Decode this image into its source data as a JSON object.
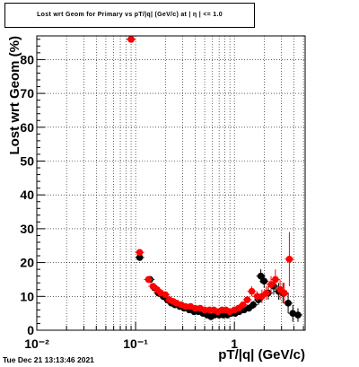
{
  "footer_timestamp": "Tue Dec 21 13:13:46 2021",
  "chart_data": {
    "type": "scatter",
    "title": "Lost wrt Geom for Primary vs pT/|q| (GeV/c) at | η | <= 1.0",
    "xlabel": "pT/|q| (GeV/c)",
    "ylabel": "Lost wrt Geom (%)",
    "xscale": "log",
    "xlim": [
      0.01,
      5.2
    ],
    "ylim": [
      0,
      87
    ],
    "grid": true,
    "x_tick_labels": [
      "10⁻²",
      "10⁻¹",
      "1"
    ],
    "y_ticks": [
      0,
      10,
      20,
      30,
      40,
      50,
      60,
      70,
      80
    ],
    "series": [
      {
        "color": "#000000",
        "points": [
          [
            0.09,
            86
          ],
          [
            0.11,
            21.5
          ],
          [
            0.14,
            15
          ],
          [
            0.155,
            12.5
          ],
          [
            0.17,
            11
          ],
          [
            0.19,
            10
          ],
          [
            0.21,
            9
          ],
          [
            0.23,
            8
          ],
          [
            0.25,
            7.5
          ],
          [
            0.28,
            7
          ],
          [
            0.31,
            6.5
          ],
          [
            0.35,
            6
          ],
          [
            0.39,
            5.5
          ],
          [
            0.43,
            5.5
          ],
          [
            0.48,
            5
          ],
          [
            0.53,
            4.5
          ],
          [
            0.58,
            4
          ],
          [
            0.63,
            4.5
          ],
          [
            0.7,
            4.5
          ],
          [
            0.77,
            4.5
          ],
          [
            0.85,
            4.5
          ],
          [
            0.93,
            5
          ],
          [
            1.02,
            5
          ],
          [
            1.12,
            5.5
          ],
          [
            1.25,
            6
          ],
          [
            1.4,
            6.5
          ],
          [
            1.55,
            7.5
          ],
          [
            1.75,
            9
          ],
          [
            1.85,
            16
          ],
          [
            2.0,
            14.5
          ],
          [
            2.2,
            11
          ],
          [
            2.5,
            13
          ],
          [
            2.8,
            11.5
          ],
          [
            3.1,
            11
          ],
          [
            3.5,
            8
          ],
          [
            3.9,
            5
          ],
          [
            4.4,
            4.5
          ]
        ],
        "errors": [
          0.5,
          1,
          1,
          0.8,
          0.8,
          0.7,
          0.6,
          0.6,
          0.6,
          0.6,
          0.6,
          0.6,
          0.6,
          0.6,
          0.6,
          0.6,
          0.6,
          0.6,
          0.6,
          0.6,
          0.6,
          0.6,
          0.6,
          0.8,
          0.8,
          1,
          1.2,
          1.5,
          2,
          2,
          2,
          2.5,
          2.5,
          3,
          3,
          2.5,
          2
        ]
      },
      {
        "color": "#ff0000",
        "points": [
          [
            0.09,
            86
          ],
          [
            0.11,
            23
          ],
          [
            0.135,
            15
          ],
          [
            0.15,
            13
          ],
          [
            0.165,
            12
          ],
          [
            0.18,
            11
          ],
          [
            0.2,
            10.5
          ],
          [
            0.22,
            9
          ],
          [
            0.24,
            8.5
          ],
          [
            0.26,
            8
          ],
          [
            0.29,
            7.5
          ],
          [
            0.32,
            7
          ],
          [
            0.36,
            7
          ],
          [
            0.4,
            6.5
          ],
          [
            0.45,
            6.5
          ],
          [
            0.5,
            6
          ],
          [
            0.56,
            6
          ],
          [
            0.62,
            6
          ],
          [
            0.68,
            5.5
          ],
          [
            0.75,
            6
          ],
          [
            0.82,
            6
          ],
          [
            0.9,
            5.5
          ],
          [
            1.0,
            6
          ],
          [
            1.1,
            6.5
          ],
          [
            1.22,
            7.5
          ],
          [
            1.35,
            9
          ],
          [
            1.5,
            11.5
          ],
          [
            1.7,
            10
          ],
          [
            1.9,
            10
          ],
          [
            2.1,
            11
          ],
          [
            2.35,
            13.5
          ],
          [
            2.6,
            15
          ],
          [
            2.9,
            12
          ],
          [
            3.2,
            11
          ],
          [
            3.6,
            21
          ]
        ],
        "errors": [
          0.5,
          1,
          1,
          0.8,
          0.8,
          0.7,
          0.7,
          0.6,
          0.6,
          0.6,
          0.6,
          0.6,
          0.6,
          0.6,
          0.6,
          0.6,
          0.6,
          0.6,
          0.6,
          0.6,
          0.6,
          0.6,
          0.6,
          0.8,
          0.8,
          1,
          1.5,
          1.5,
          2,
          2,
          2.5,
          3,
          3,
          3,
          8
        ]
      }
    ]
  }
}
